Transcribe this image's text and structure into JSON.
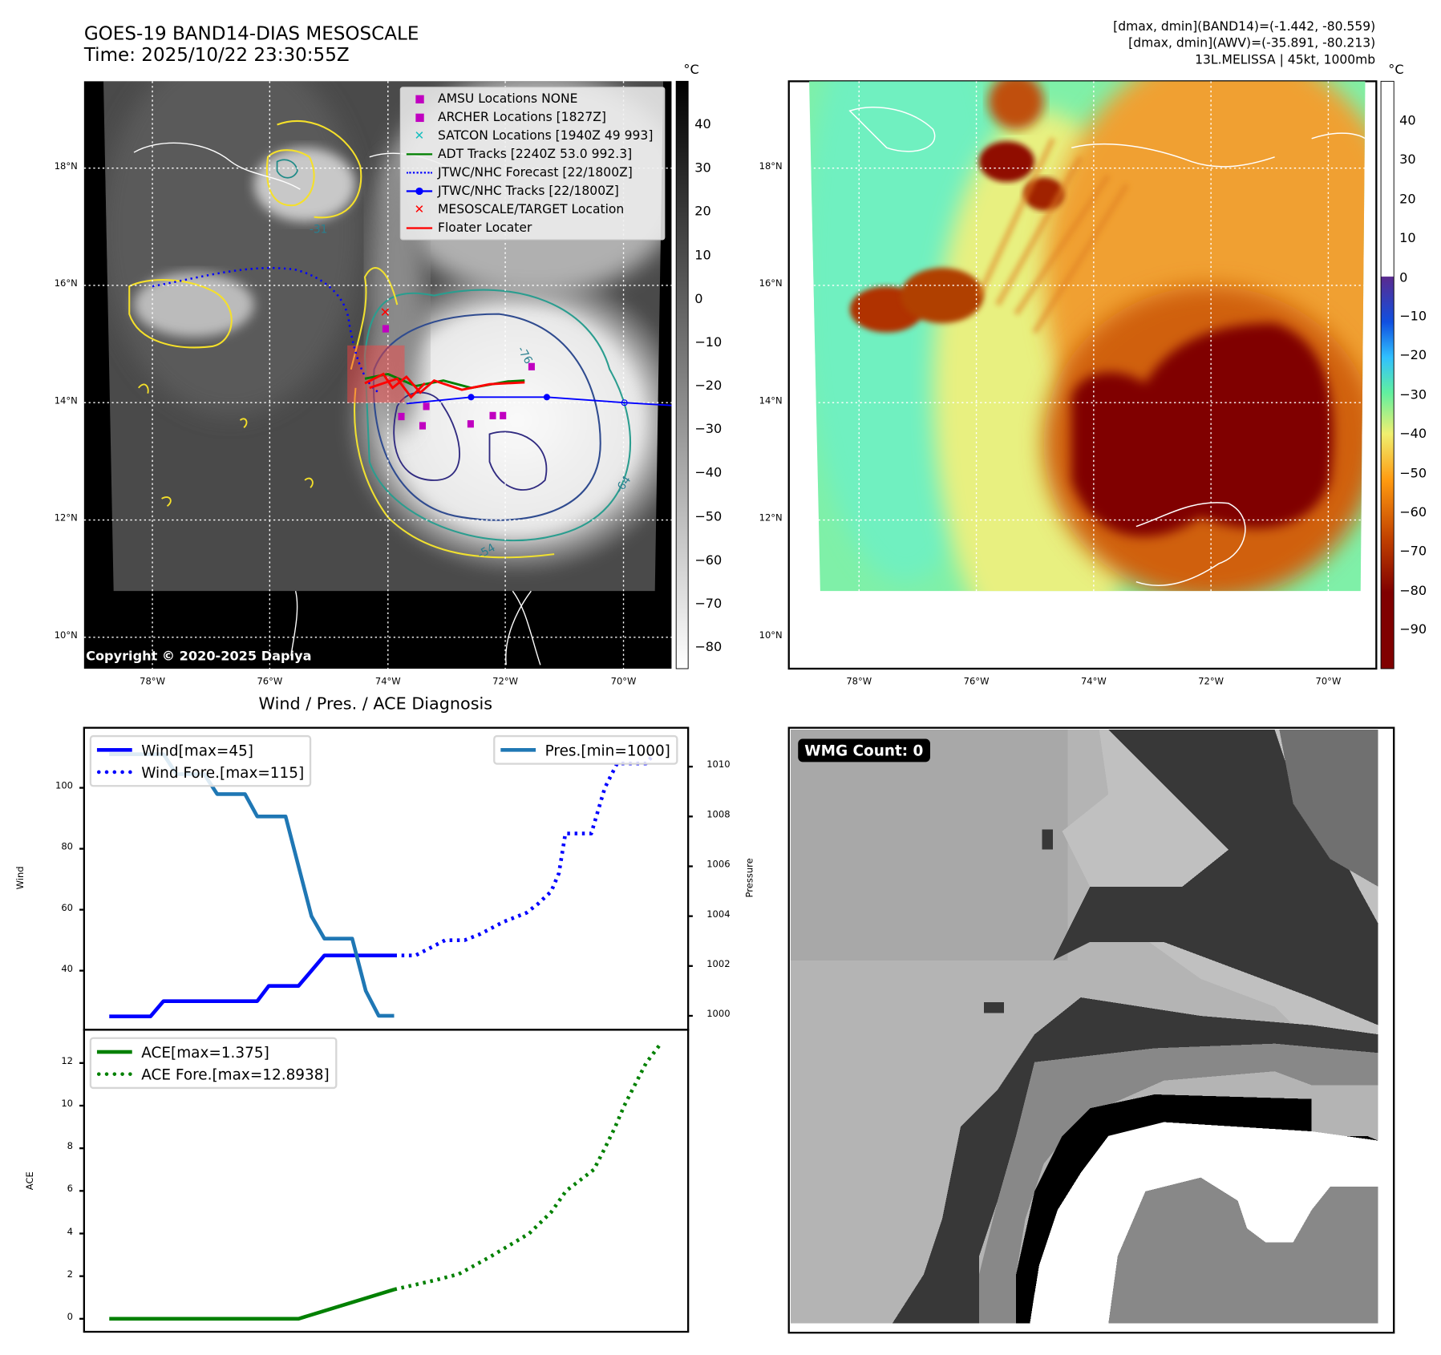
{
  "header": {
    "title_line1": "GOES-19 BAND14-DIAS MESOSCALE",
    "title_line2": "Time: 2025/10/22 23:30:55Z",
    "info_line1": "[dmax, dmin](BAND14)=(-1.442, -80.559)",
    "info_line2": "[dmax, dmin](AWV)=(-35.891, -80.213)",
    "info_line3": "13L.MELISSA | 45kt, 1000mb"
  },
  "map_left": {
    "lat_labels": [
      "18°N",
      "16°N",
      "14°N",
      "12°N",
      "10°N"
    ],
    "lon_labels": [
      "78°W",
      "76°W",
      "74°W",
      "72°W",
      "70°W"
    ],
    "contour_labels": [
      "-76",
      "-64",
      "-54",
      "-31"
    ],
    "colorbar_unit": "°C",
    "colorbar_ticks": [
      "40",
      "30",
      "20",
      "10",
      "0",
      "−10",
      "−20",
      "−30",
      "−40",
      "−50",
      "−60",
      "−70",
      "−80"
    ],
    "copyright": "Copyright © 2020-2025 Dapiya",
    "legend": [
      {
        "label": "AMSU Locations NONE",
        "symbol": "square",
        "color": "#c000c0"
      },
      {
        "label": "ARCHER Locations [1827Z]",
        "symbol": "square",
        "color": "#c000c0"
      },
      {
        "label": "SATCON Locations [1940Z 49 993]",
        "symbol": "x",
        "color": "#17bfbf"
      },
      {
        "label": "ADT Tracks [2240Z 53.0 992.3]",
        "symbol": "line",
        "color": "#008000"
      },
      {
        "label": "JTWC/NHC Forecast [22/1800Z]",
        "symbol": "dotted",
        "color": "#0000ff"
      },
      {
        "label": "JTWC/NHC Tracks [22/1800Z]",
        "symbol": "line-dot",
        "color": "#0000ff"
      },
      {
        "label": "MESOSCALE/TARGET Location",
        "symbol": "x",
        "color": "#ff0000"
      },
      {
        "label": "Floater Locater",
        "symbol": "line",
        "color": "#ff0000"
      }
    ]
  },
  "map_right": {
    "lat_labels": [
      "18°N",
      "16°N",
      "14°N",
      "12°N",
      "10°N"
    ],
    "lon_labels": [
      "78°W",
      "76°W",
      "74°W",
      "72°W",
      "70°W"
    ],
    "colorbar_unit": "°C",
    "colorbar_ticks": [
      "40",
      "30",
      "20",
      "10",
      "0",
      "−10",
      "−20",
      "−30",
      "−40",
      "−50",
      "−60",
      "−70",
      "−80",
      "−90"
    ]
  },
  "wmg": {
    "label": "WMG Count: 0"
  },
  "chart_data": [
    {
      "type": "line",
      "title": "Wind / Pres. / ACE Diagnosis",
      "ylabel": "Wind",
      "y2label": "Pressure",
      "xlim": [
        -3.9,
        89.6
      ],
      "ylim": [
        20.6,
        119.7
      ],
      "y2lim": [
        999.44,
        1011.56
      ],
      "yticks": [
        "40",
        "60",
        "80",
        "100"
      ],
      "y2ticks": [
        "1000",
        "1002",
        "1004",
        "1006",
        "1008",
        "1010"
      ],
      "legend_left": [
        "Wind[max=45]",
        "Wind Fore.[max=115]"
      ],
      "legend_right": [
        "Pres.[min=1000]"
      ],
      "series": [
        {
          "name": "Wind[max=45]",
          "axis": "left",
          "style": "solid",
          "color": "#0000ff",
          "x": [
            0,
            6.4,
            8.4,
            22.9,
            24.7,
            29.3,
            33.3,
            44.1
          ],
          "y": [
            25,
            25,
            30,
            30,
            35,
            35,
            45,
            45
          ]
        },
        {
          "name": "Wind Fore.[max=115]",
          "axis": "left",
          "style": "dotted",
          "color": "#0000ff",
          "x": [
            44.1,
            47.4,
            52,
            55,
            57.4,
            61,
            64.6,
            66.4,
            68.4,
            69.6,
            70.6,
            74.6,
            76.7,
            78.6,
            83.1,
            83.9
          ],
          "y": [
            45,
            45,
            50,
            50,
            52,
            56,
            59,
            62,
            66,
            72,
            85,
            85,
            100,
            108,
            108,
            110
          ]
        },
        {
          "name": "Pres.[min=1000]",
          "axis": "right",
          "style": "solid",
          "color": "#1f77b4",
          "x": [
            0,
            8.4,
            10.4,
            14.7,
            16.7,
            21,
            22.9,
            27.3,
            31.3,
            33.3,
            37.6,
            39.7,
            41.7,
            44.1
          ],
          "y": [
            1010.5,
            1010.5,
            1009.7,
            1009.7,
            1008.9,
            1008.9,
            1008,
            1008,
            1004,
            1003.1,
            1003.1,
            1001,
            1000,
            1000
          ]
        }
      ]
    },
    {
      "type": "line",
      "ylabel": "ACE",
      "xlim": [
        -3.9,
        89.6
      ],
      "ylim": [
        -0.61,
        13.56
      ],
      "yticks": [
        "0",
        "2",
        "4",
        "6",
        "8",
        "10",
        "12"
      ],
      "legend": [
        "ACE[max=1.375]",
        "ACE Fore.[max=12.8938]"
      ],
      "series": [
        {
          "name": "ACE[max=1.375]",
          "style": "solid",
          "color": "#008000",
          "x": [
            0,
            29.3,
            44.1
          ],
          "y": [
            0,
            0,
            1.375
          ]
        },
        {
          "name": "ACE Fore.[max=12.8938]",
          "style": "dotted",
          "color": "#008000",
          "x": [
            44.1,
            50.3,
            54.1,
            58.9,
            65,
            68.4,
            70.7,
            75,
            76.7,
            78.3,
            79.7,
            81.4,
            83.1,
            85.3
          ],
          "y": [
            1.375,
            1.8,
            2.1,
            2.9,
            4,
            5,
            6,
            7,
            8,
            9,
            10,
            11,
            12,
            12.89
          ]
        }
      ]
    }
  ]
}
